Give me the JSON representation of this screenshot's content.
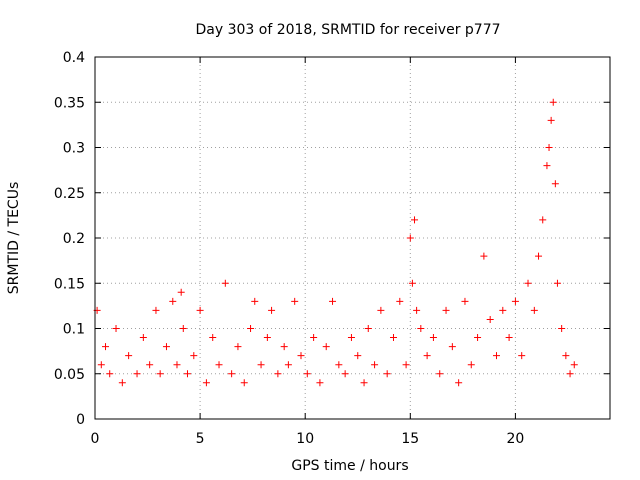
{
  "chart_data": {
    "type": "scatter",
    "title": "Day 303 of 2018, SRMTID for receiver p777",
    "xlabel": "GPS time / hours",
    "ylabel": "SRMTID / TECUs",
    "xlim": [
      0,
      24.5
    ],
    "ylim": [
      0,
      0.4
    ],
    "xticks": [
      0,
      5,
      10,
      15,
      20
    ],
    "xtick_labels": [
      "0",
      "5",
      "10",
      "15",
      "20"
    ],
    "yticks": [
      0,
      0.05,
      0.1,
      0.15,
      0.2,
      0.25,
      0.3,
      0.35,
      0.4
    ],
    "ytick_labels": [
      "0",
      "0.05",
      "0.1",
      "0.15",
      "0.2",
      "0.25",
      "0.3",
      "0.35",
      "0.4"
    ],
    "grid": true,
    "marker": "plus",
    "color": "#ff0000",
    "series": [
      {
        "name": "SRMTID",
        "x": [
          0.1,
          0.3,
          0.5,
          0.7,
          1.0,
          1.3,
          1.6,
          2.0,
          2.3,
          2.6,
          2.9,
          3.1,
          3.4,
          3.7,
          3.9,
          4.1,
          4.2,
          4.4,
          4.7,
          5.0,
          5.3,
          5.6,
          5.9,
          6.2,
          6.5,
          6.8,
          7.1,
          7.4,
          7.6,
          7.9,
          8.2,
          8.4,
          8.7,
          9.0,
          9.2,
          9.5,
          9.8,
          10.1,
          10.4,
          10.7,
          11.0,
          11.3,
          11.6,
          11.9,
          12.2,
          12.5,
          12.8,
          13.0,
          13.3,
          13.6,
          13.9,
          14.2,
          14.5,
          14.8,
          15.0,
          15.1,
          15.2,
          15.3,
          15.5,
          15.8,
          16.1,
          16.4,
          16.7,
          17.0,
          17.3,
          17.6,
          17.9,
          18.2,
          18.5,
          18.8,
          19.1,
          19.4,
          19.7,
          20.0,
          20.3,
          20.6,
          20.9,
          21.1,
          21.3,
          21.5,
          21.6,
          21.7,
          21.8,
          21.9,
          22.0,
          22.2,
          22.4,
          22.6,
          22.8
        ],
        "y": [
          0.12,
          0.06,
          0.08,
          0.05,
          0.1,
          0.04,
          0.07,
          0.05,
          0.09,
          0.06,
          0.12,
          0.05,
          0.08,
          0.13,
          0.06,
          0.14,
          0.1,
          0.05,
          0.07,
          0.12,
          0.04,
          0.09,
          0.06,
          0.15,
          0.05,
          0.08,
          0.04,
          0.1,
          0.13,
          0.06,
          0.09,
          0.12,
          0.05,
          0.08,
          0.06,
          0.13,
          0.07,
          0.05,
          0.09,
          0.04,
          0.08,
          0.13,
          0.06,
          0.05,
          0.09,
          0.07,
          0.04,
          0.1,
          0.06,
          0.12,
          0.05,
          0.09,
          0.13,
          0.06,
          0.2,
          0.15,
          0.22,
          0.12,
          0.1,
          0.07,
          0.09,
          0.05,
          0.12,
          0.08,
          0.04,
          0.13,
          0.06,
          0.09,
          0.18,
          0.11,
          0.07,
          0.12,
          0.09,
          0.13,
          0.07,
          0.15,
          0.12,
          0.18,
          0.22,
          0.28,
          0.3,
          0.33,
          0.35,
          0.26,
          0.15,
          0.1,
          0.07,
          0.05,
          0.06
        ]
      }
    ]
  }
}
